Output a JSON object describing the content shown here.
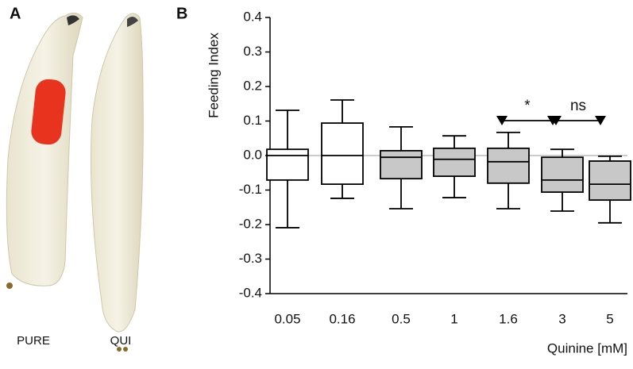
{
  "panel_labels": [
    "A",
    "B"
  ],
  "image_labels": [
    "PURE",
    "QUI"
  ],
  "chart_data": {
    "type": "box",
    "y_label": "Feeding Index",
    "x_label": "Quinine [mM]",
    "categories": [
      "0.05",
      "0.16",
      "0.5",
      "1",
      "1.6",
      "3",
      "5"
    ],
    "boxes": {
      "whisker_high": [
        0.131,
        0.161,
        0.083,
        0.057,
        0.067,
        0.018,
        -0.002
      ],
      "q3": [
        0.018,
        0.094,
        0.014,
        0.021,
        0.021,
        -0.005,
        -0.016
      ],
      "median": [
        0.0,
        0.0,
        -0.005,
        -0.011,
        -0.018,
        -0.071,
        -0.083
      ],
      "q1": [
        -0.071,
        -0.083,
        -0.067,
        -0.06,
        -0.08,
        -0.106,
        -0.129
      ],
      "whisker_low": [
        -0.209,
        -0.124,
        -0.154,
        -0.122,
        -0.154,
        -0.161,
        -0.195
      ]
    },
    "colors": [
      "#ffffff",
      "#ffffff",
      "#c8c8c8",
      "#c8c8c8",
      "#c8c8c8",
      "#c8c8c8",
      "#c8c8c8"
    ],
    "ylim": [
      -0.4,
      0.4
    ],
    "yticks": [
      -0.4,
      -0.3,
      -0.2,
      -0.1,
      {
        "value": 0,
        "label": "0.0"
      },
      0.1,
      0.2,
      0.3,
      0.4
    ],
    "annotations": [
      {
        "text": "*",
        "from": 4,
        "to": 5
      },
      {
        "text": "ns",
        "from": 5,
        "to": 6
      }
    ]
  }
}
